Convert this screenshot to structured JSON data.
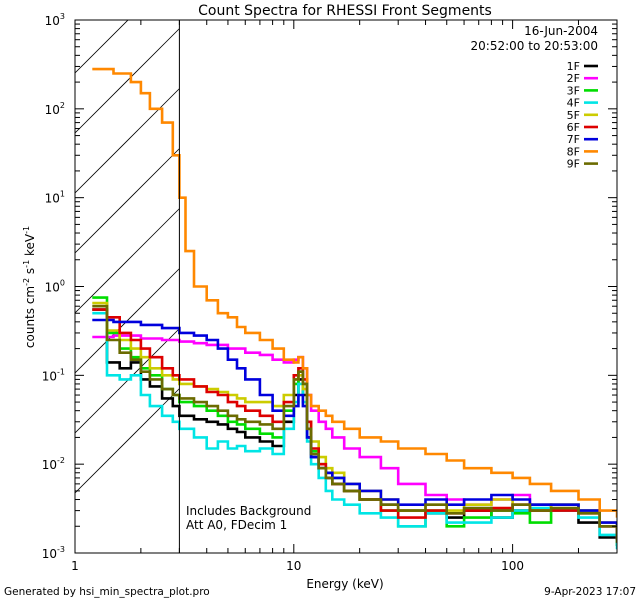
{
  "chart_data": {
    "type": "line",
    "title": "Count Spectra for RHESSI Front Segments",
    "xlabel": "Energy (keV)",
    "ylabel_parts": [
      "counts cm",
      "-2",
      " s",
      "-1",
      " keV",
      "-1"
    ],
    "x_scale": "log",
    "y_scale": "log",
    "xlim": [
      1,
      300
    ],
    "ylim": [
      0.001,
      1000
    ],
    "x_ticks": [
      {
        "v": 1,
        "label": "1"
      },
      {
        "v": 10,
        "label": "10"
      },
      {
        "v": 100,
        "label": "100"
      }
    ],
    "y_ticks": [
      {
        "v": 0.001,
        "base": "10",
        "exp": "-3"
      },
      {
        "v": 0.01,
        "base": "10",
        "exp": "-2"
      },
      {
        "v": 0.1,
        "base": "10",
        "exp": "-1"
      },
      {
        "v": 1,
        "base": "10",
        "exp": "0"
      },
      {
        "v": 10,
        "base": "10",
        "exp": "1"
      },
      {
        "v": 100,
        "base": "10",
        "exp": "2"
      },
      {
        "v": 1000,
        "base": "10",
        "exp": "3"
      }
    ],
    "date": "16-Jun-2004",
    "time_range": "20:52:00 to 20:53:00",
    "hatch_region_max_kev": 3,
    "annotations": [
      "Includes Background",
      "Att A0, FDecim 1"
    ],
    "series": [
      {
        "name": "1F",
        "color": "#000000",
        "x": [
          1.2,
          1.4,
          1.6,
          1.8,
          2.0,
          2.2,
          2.5,
          2.8,
          3.0,
          3.5,
          4,
          4.5,
          5,
          5.5,
          6,
          7,
          8,
          9,
          10,
          10.5,
          11,
          11.5,
          12,
          13,
          14,
          15,
          17,
          20,
          25,
          30,
          40,
          50,
          60,
          80,
          100,
          120,
          150,
          200,
          250,
          300
        ],
        "y": [
          0.55,
          0.14,
          0.12,
          0.14,
          0.09,
          0.075,
          0.055,
          0.045,
          0.035,
          0.032,
          0.03,
          0.028,
          0.025,
          0.023,
          0.02,
          0.018,
          0.016,
          0.03,
          0.06,
          0.09,
          0.06,
          0.02,
          0.012,
          0.009,
          0.007,
          0.006,
          0.005,
          0.004,
          0.0035,
          0.003,
          0.0028,
          0.0025,
          0.003,
          0.0025,
          0.003,
          0.0035,
          0.003,
          0.0022,
          0.0015,
          0.0012
        ]
      },
      {
        "name": "2F",
        "color": "#ff00ff",
        "x": [
          1.2,
          1.5,
          2,
          2.5,
          3,
          3.5,
          4,
          5,
          6,
          7,
          8,
          9,
          10,
          10.5,
          11,
          11.5,
          12,
          13,
          14,
          15,
          17,
          20,
          25,
          30,
          40,
          50,
          60,
          80,
          100,
          120,
          150,
          200,
          250,
          300
        ],
        "y": [
          0.27,
          0.28,
          0.26,
          0.25,
          0.24,
          0.23,
          0.22,
          0.2,
          0.18,
          0.17,
          0.15,
          0.14,
          0.15,
          0.16,
          0.12,
          0.06,
          0.04,
          0.03,
          0.025,
          0.02,
          0.015,
          0.012,
          0.009,
          0.006,
          0.0045,
          0.004,
          0.0035,
          0.004,
          0.0045,
          0.003,
          0.0035,
          0.003,
          0.002,
          0.0015
        ]
      },
      {
        "name": "3F",
        "color": "#00dd00",
        "x": [
          1.2,
          1.4,
          1.6,
          1.8,
          2.0,
          2.2,
          2.5,
          2.8,
          3.0,
          3.5,
          4,
          4.5,
          5,
          5.5,
          6,
          7,
          8,
          9,
          10,
          10.5,
          11,
          11.5,
          12,
          13,
          14,
          15,
          17,
          20,
          25,
          30,
          40,
          50,
          60,
          80,
          100,
          120,
          150,
          200,
          250,
          300
        ],
        "y": [
          0.75,
          0.3,
          0.2,
          0.16,
          0.12,
          0.1,
          0.07,
          0.06,
          0.05,
          0.045,
          0.04,
          0.035,
          0.03,
          0.028,
          0.025,
          0.022,
          0.02,
          0.04,
          0.08,
          0.11,
          0.08,
          0.025,
          0.014,
          0.01,
          0.008,
          0.007,
          0.005,
          0.004,
          0.003,
          0.002,
          0.003,
          0.002,
          0.0025,
          0.003,
          0.0028,
          0.0022,
          0.0035,
          0.003,
          0.002,
          0.0012
        ]
      },
      {
        "name": "4F",
        "color": "#00e5e5",
        "x": [
          1.2,
          1.4,
          1.6,
          1.8,
          2.0,
          2.2,
          2.5,
          2.8,
          3.0,
          3.5,
          4,
          4.5,
          5,
          5.5,
          6,
          7,
          8,
          9,
          10,
          10.5,
          11,
          11.5,
          12,
          13,
          14,
          15,
          17,
          20,
          25,
          30,
          40,
          50,
          60,
          80,
          100,
          120,
          150,
          200,
          250,
          300
        ],
        "y": [
          0.5,
          0.1,
          0.09,
          0.1,
          0.06,
          0.045,
          0.035,
          0.03,
          0.025,
          0.02,
          0.015,
          0.018,
          0.015,
          0.016,
          0.014,
          0.015,
          0.013,
          0.025,
          0.05,
          0.08,
          0.05,
          0.018,
          0.01,
          0.007,
          0.005,
          0.004,
          0.0035,
          0.0028,
          0.0025,
          0.002,
          0.0028,
          0.0022,
          0.0022,
          0.0025,
          0.003,
          0.0032,
          0.003,
          0.0025,
          0.0016,
          0.0011
        ]
      },
      {
        "name": "5F",
        "color": "#cccc00",
        "x": [
          1.2,
          1.4,
          1.6,
          1.8,
          2.0,
          2.2,
          2.5,
          2.8,
          3.0,
          3.5,
          4,
          4.5,
          5,
          5.5,
          6,
          7,
          8,
          9,
          10,
          10.5,
          11,
          11.5,
          12,
          13,
          14,
          15,
          17,
          20,
          25,
          30,
          40,
          50,
          60,
          80,
          100,
          120,
          150,
          200,
          250,
          300
        ],
        "y": [
          0.65,
          0.32,
          0.25,
          0.2,
          0.16,
          0.12,
          0.1,
          0.09,
          0.08,
          0.075,
          0.07,
          0.065,
          0.06,
          0.055,
          0.05,
          0.05,
          0.045,
          0.06,
          0.09,
          0.1,
          0.07,
          0.03,
          0.018,
          0.012,
          0.009,
          0.008,
          0.006,
          0.005,
          0.004,
          0.003,
          0.0035,
          0.003,
          0.0035,
          0.004,
          0.0035,
          0.003,
          0.0035,
          0.003,
          0.0022,
          0.0015
        ]
      },
      {
        "name": "6F",
        "color": "#dd0000",
        "x": [
          1.2,
          1.4,
          1.6,
          1.8,
          2.0,
          2.2,
          2.5,
          2.8,
          3.0,
          3.5,
          4,
          4.5,
          5,
          5.5,
          6,
          7,
          8,
          9,
          10,
          10.5,
          11,
          11.5,
          12,
          13,
          14,
          15,
          17,
          20,
          25,
          30,
          40,
          50,
          60,
          80,
          100,
          120,
          150,
          200,
          250,
          300
        ],
        "y": [
          0.55,
          0.45,
          0.3,
          0.25,
          0.2,
          0.16,
          0.12,
          0.1,
          0.09,
          0.075,
          0.065,
          0.06,
          0.05,
          0.045,
          0.04,
          0.035,
          0.03,
          0.05,
          0.1,
          0.12,
          0.09,
          0.03,
          0.015,
          0.01,
          0.008,
          0.006,
          0.005,
          0.004,
          0.003,
          0.0025,
          0.003,
          0.0028,
          0.003,
          0.0032,
          0.0035,
          0.003,
          0.003,
          0.0028,
          0.002,
          0.0014
        ]
      },
      {
        "name": "7F",
        "color": "#0000dd",
        "x": [
          1.2,
          1.5,
          2,
          2.5,
          3,
          3.5,
          4,
          4.5,
          5,
          5.5,
          6,
          7,
          8,
          9,
          10,
          10.5,
          11,
          11.5,
          12,
          13,
          14,
          15,
          17,
          20,
          25,
          30,
          40,
          50,
          60,
          80,
          100,
          120,
          150,
          200,
          250,
          300
        ],
        "y": [
          0.42,
          0.4,
          0.37,
          0.34,
          0.3,
          0.28,
          0.25,
          0.2,
          0.15,
          0.12,
          0.09,
          0.06,
          0.04,
          0.035,
          0.045,
          0.06,
          0.045,
          0.02,
          0.012,
          0.009,
          0.008,
          0.007,
          0.006,
          0.005,
          0.004,
          0.0035,
          0.004,
          0.0035,
          0.004,
          0.0045,
          0.004,
          0.0035,
          0.0035,
          0.003,
          0.0022,
          0.0014
        ]
      },
      {
        "name": "8F",
        "color": "#ff8800",
        "x": [
          1.2,
          1.5,
          1.8,
          2.0,
          2.2,
          2.5,
          2.8,
          3.0,
          3.2,
          3.5,
          4,
          4.5,
          5,
          5.5,
          6,
          7,
          8,
          9,
          10,
          10.5,
          11,
          11.5,
          12,
          13,
          14,
          15,
          17,
          20,
          25,
          30,
          40,
          50,
          60,
          80,
          100,
          120,
          150,
          200,
          250,
          300
        ],
        "y": [
          280,
          250,
          200,
          150,
          100,
          70,
          30,
          10,
          2.5,
          1.0,
          0.7,
          0.5,
          0.45,
          0.35,
          0.3,
          0.25,
          0.2,
          0.15,
          0.14,
          0.16,
          0.12,
          0.06,
          0.045,
          0.04,
          0.035,
          0.03,
          0.025,
          0.02,
          0.018,
          0.015,
          0.013,
          0.011,
          0.009,
          0.008,
          0.007,
          0.006,
          0.005,
          0.004,
          0.003,
          0.0025
        ]
      },
      {
        "name": "9F",
        "color": "#6b6b00",
        "x": [
          1.2,
          1.4,
          1.6,
          1.8,
          2.0,
          2.2,
          2.5,
          2.8,
          3.0,
          3.5,
          4,
          4.5,
          5,
          5.5,
          6,
          7,
          8,
          9,
          10,
          10.5,
          11,
          11.5,
          12,
          13,
          14,
          15,
          17,
          20,
          25,
          30,
          40,
          50,
          60,
          80,
          100,
          120,
          150,
          200,
          250,
          300
        ],
        "y": [
          0.6,
          0.25,
          0.18,
          0.15,
          0.11,
          0.09,
          0.07,
          0.06,
          0.055,
          0.05,
          0.045,
          0.04,
          0.035,
          0.032,
          0.03,
          0.028,
          0.025,
          0.045,
          0.09,
          0.11,
          0.08,
          0.025,
          0.013,
          0.009,
          0.007,
          0.006,
          0.005,
          0.004,
          0.0035,
          0.003,
          0.0035,
          0.0028,
          0.0032,
          0.003,
          0.0035,
          0.003,
          0.0032,
          0.0028,
          0.002,
          0.0013
        ]
      }
    ]
  },
  "footer": {
    "generated_by": "Generated by hsi_min_spectra_plot.pro",
    "timestamp": "9-Apr-2023 17:07"
  }
}
